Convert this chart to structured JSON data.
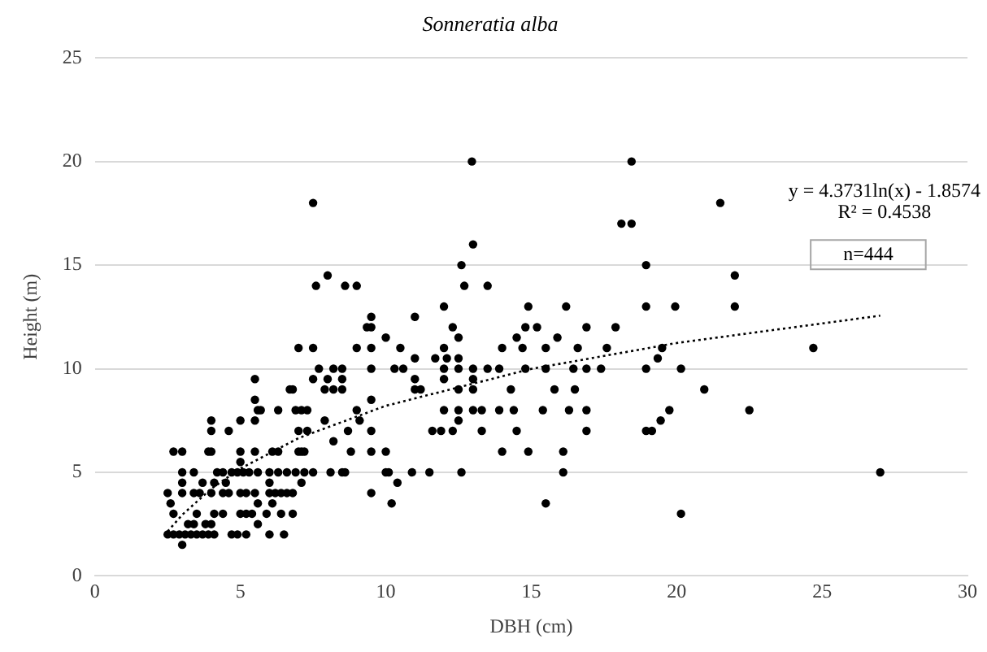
{
  "chart_data": {
    "type": "scatter",
    "title": "Sonneratia alba",
    "xlabel": "DBH (cm)",
    "ylabel": "Height (m)",
    "xlim": [
      0,
      30
    ],
    "xticks": [
      0,
      5,
      10,
      15,
      20,
      25,
      30
    ],
    "ylim": [
      0,
      25
    ],
    "yticks": [
      0,
      5,
      10,
      15,
      20,
      25
    ],
    "grid": "y",
    "marker": "circle",
    "annotations": [
      "y = 4.3731ln(x) - 1.8574",
      "R² = 0.4538",
      "n=444"
    ],
    "series": [
      {
        "color": "#000000",
        "x": [
          3.0,
          2.5,
          2.7,
          2.9,
          3.1,
          3.3,
          3.5,
          3.7,
          3.9,
          4.1,
          4.7,
          4.9,
          5.2,
          6.0,
          6.5,
          3.2,
          3.4,
          3.8,
          4.0,
          5.6,
          2.7,
          3.5,
          4.1,
          4.4,
          5.0,
          5.2,
          5.4,
          5.9,
          6.4,
          6.8,
          20.15,
          2.6,
          5.6,
          6.1,
          10.2,
          15.5,
          2.5,
          3.0,
          3.4,
          3.6,
          4.0,
          4.4,
          4.6,
          5.0,
          5.2,
          5.5,
          6.0,
          6.2,
          6.4,
          6.6,
          6.8,
          9.5,
          3.0,
          3.7,
          4.1,
          4.5,
          6.0,
          7.1,
          10.4,
          3.0,
          3.4,
          4.2,
          4.4,
          4.7,
          4.9,
          5.1,
          5.3,
          5.6,
          6.0,
          6.3,
          6.6,
          6.9,
          7.2,
          7.5,
          8.1,
          8.5,
          8.6,
          10.0,
          10.1,
          10.9,
          11.5,
          12.6,
          16.1,
          27.0,
          5.0,
          2.7,
          3.0,
          3.9,
          4.0,
          5.0,
          5.5,
          6.1,
          6.3,
          7.0,
          7.1,
          7.2,
          8.8,
          9.5,
          10.0,
          14.0,
          14.9,
          16.1,
          8.2,
          4.0,
          4.6,
          7.0,
          7.3,
          8.7,
          9.5,
          11.6,
          11.9,
          12.3,
          13.3,
          14.5,
          16.9,
          18.95,
          19.15,
          4.0,
          5.0,
          5.5,
          7.9,
          9.1,
          12.5,
          19.45,
          5.6,
          5.7,
          6.3,
          6.9,
          7.1,
          7.3,
          9.0,
          12.0,
          12.5,
          13.0,
          13.3,
          13.9,
          14.4,
          15.4,
          16.3,
          16.9,
          19.75,
          22.5,
          5.5,
          9.5,
          6.7,
          6.8,
          7.9,
          8.2,
          8.5,
          11.0,
          11.2,
          12.5,
          13.0,
          14.3,
          15.8,
          16.5,
          20.95,
          5.5,
          7.5,
          8.0,
          8.5,
          11.0,
          12.0,
          13.0,
          7.7,
          8.2,
          8.5,
          9.5,
          10.3,
          10.6,
          12.0,
          12.5,
          13.0,
          13.5,
          13.9,
          14.8,
          15.5,
          16.45,
          16.9,
          17.4,
          18.95,
          20.15,
          11.0,
          11.7,
          12.1,
          12.5,
          19.35,
          7.0,
          7.5,
          9.0,
          9.5,
          10.5,
          12.0,
          14.0,
          14.7,
          15.5,
          16.6,
          17.6,
          19.5,
          24.7,
          10.0,
          12.5,
          14.5,
          15.9,
          9.35,
          9.5,
          12.3,
          14.8,
          15.2,
          16.9,
          17.9,
          9.5,
          11.0,
          12.0,
          14.9,
          16.2,
          18.95,
          19.95,
          22.0,
          7.6,
          8.6,
          9.0,
          12.7,
          13.5,
          8.0,
          22.0,
          12.6,
          18.95,
          13.0,
          18.1,
          18.45,
          7.5,
          21.5,
          12.96,
          18.45
        ],
        "values": [
          1.5,
          2,
          2,
          2,
          2,
          2,
          2,
          2,
          2,
          2,
          2,
          2,
          2,
          2,
          2,
          2.5,
          2.5,
          2.5,
          2.5,
          2.5,
          3,
          3,
          3,
          3,
          3,
          3,
          3,
          3,
          3,
          3,
          3,
          3.5,
          3.5,
          3.5,
          3.5,
          3.5,
          4,
          4,
          4,
          4,
          4,
          4,
          4,
          4,
          4,
          4,
          4,
          4,
          4,
          4,
          4,
          4,
          4.5,
          4.5,
          4.5,
          4.5,
          4.5,
          4.5,
          4.5,
          5,
          5,
          5,
          5,
          5,
          5,
          5,
          5,
          5,
          5,
          5,
          5,
          5,
          5,
          5,
          5,
          5,
          5,
          5,
          5,
          5,
          5,
          5,
          5,
          5,
          5.5,
          6,
          6,
          6,
          6,
          6,
          6,
          6,
          6,
          6,
          6,
          6,
          6,
          6,
          6,
          6,
          6,
          6,
          6.5,
          7,
          7,
          7,
          7,
          7,
          7,
          7,
          7,
          7,
          7,
          7,
          7,
          7,
          7,
          7.5,
          7.5,
          7.5,
          7.5,
          7.5,
          7.5,
          7.5,
          8,
          8,
          8,
          8,
          8,
          8,
          8,
          8,
          8,
          8,
          8,
          8,
          8,
          8,
          8,
          8,
          8,
          8,
          8.5,
          8.5,
          9,
          9,
          9,
          9,
          9,
          9,
          9,
          9,
          9,
          9,
          9,
          9,
          9,
          9.5,
          9.5,
          9.5,
          9.5,
          9.5,
          9.5,
          9.5,
          10,
          10,
          10,
          10,
          10,
          10,
          10,
          10,
          10,
          10,
          10,
          10,
          10,
          10,
          10,
          10,
          10,
          10,
          10.5,
          10.5,
          10.5,
          10.5,
          10.5,
          11,
          11,
          11,
          11,
          11,
          11,
          11,
          11,
          11,
          11,
          11,
          11,
          11,
          11.5,
          11.5,
          11.5,
          11.5,
          12,
          12,
          12,
          12,
          12,
          12,
          12,
          12.5,
          12.5,
          13,
          13,
          13,
          13,
          13,
          13,
          14,
          14,
          14,
          14,
          14,
          14.5,
          14.5,
          15,
          15,
          16,
          17,
          17,
          18,
          18,
          20,
          20
        ]
      },
      {
        "type": "line",
        "color": "#000000",
        "line_style": "dotted",
        "marker": "none",
        "x": [
          2.5,
          3,
          4,
          5,
          7,
          10,
          15,
          20,
          27
        ],
        "values": [
          2.15,
          2.95,
          4.21,
          5.18,
          6.65,
          8.21,
          9.99,
          11.24,
          12.56
        ]
      }
    ]
  }
}
